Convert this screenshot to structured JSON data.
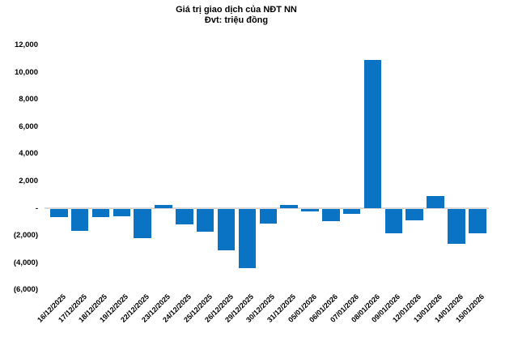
{
  "title": "Giá trị giao dịch của NĐT NN",
  "subtitle": "Đvt: triệu đồng",
  "colors": {
    "bar": "#0a73c4",
    "zero_line": "#d9d9d9",
    "text": "#000000",
    "background": "#ffffff"
  },
  "chart_data": {
    "type": "bar",
    "title": "Giá trị giao dịch của NĐT NN",
    "subtitle": "Đvt: triệu đồng",
    "xlabel": "",
    "ylabel": "",
    "unit": "triệu đồng",
    "ylim": [
      -6000,
      12000
    ],
    "ytick_step": 2000,
    "ytick_labels": [
      "12,000",
      "10,000",
      "8,000",
      "6,000",
      "4,000",
      "2,000",
      "-",
      "(2,000)",
      "(4,000)",
      "(6,000)"
    ],
    "grid": false,
    "legend": false,
    "categories": [
      "16/12/2025",
      "17/12/2025",
      "18/12/2025",
      "19/12/2025",
      "22/12/2025",
      "23/12/2025",
      "24/12/2025",
      "25/12/2025",
      "26/12/2025",
      "29/12/2025",
      "30/12/2025",
      "31/12/2025",
      "05/01/2026",
      "06/01/2026",
      "07/01/2026",
      "08/01/2026",
      "09/01/2026",
      "12/01/2026",
      "13/01/2026",
      "14/01/2026",
      "15/01/2026"
    ],
    "values": [
      -650,
      -1650,
      -600,
      -550,
      -2150,
      250,
      -1150,
      -1700,
      -3050,
      -4400,
      -1100,
      250,
      -180,
      -950,
      -400,
      10950,
      -1800,
      -850,
      900,
      -2600,
      -1800
    ]
  }
}
